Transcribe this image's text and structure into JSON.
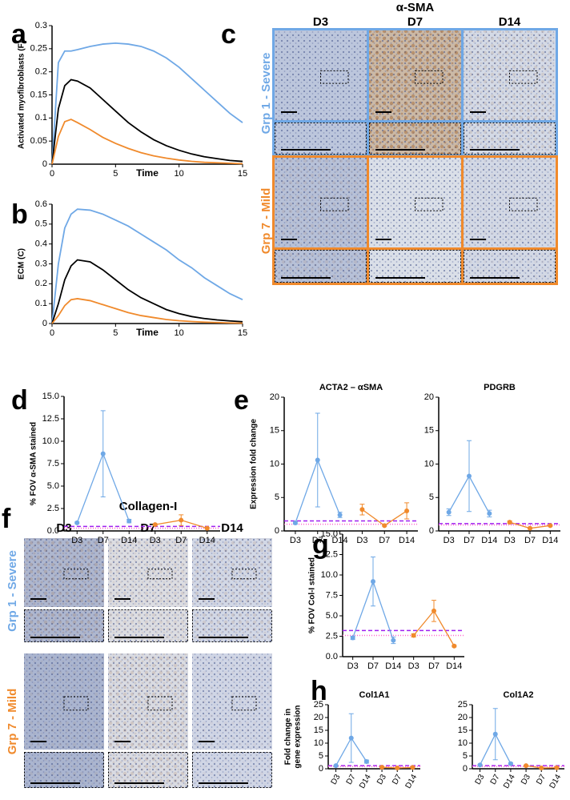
{
  "panel_labels": [
    "a",
    "b",
    "c",
    "d",
    "e",
    "f",
    "g",
    "h"
  ],
  "micrographs": [
    {
      "title": "α-SMA",
      "columns": [
        "D3",
        "D7",
        "D14"
      ],
      "rows": [
        "Grp 1 - Severe",
        "Grp 7 - Mild"
      ]
    },
    {
      "title": "Collagen-I",
      "columns": [
        "D3",
        "D7",
        "D14"
      ],
      "rows": [
        "Grp 1 - Severe",
        "Grp 7 - Mild"
      ]
    }
  ],
  "chart_data": [
    {
      "type": "line",
      "ylabel": "Activated  myofibroblasts (F)",
      "xlabel": "Time",
      "x": [
        0,
        0.5,
        1,
        1.5,
        2,
        3,
        4,
        5,
        6,
        7,
        8,
        9,
        10,
        11,
        12,
        13,
        14,
        15
      ],
      "xlim": [
        0,
        15
      ],
      "xticks": [
        0,
        5,
        10,
        15
      ],
      "ylim": [
        0,
        0.3
      ],
      "yticks": [
        0,
        0.05,
        0.1,
        0.15,
        0.2,
        0.25,
        0.3
      ],
      "series": [
        {
          "color": "#6fa8e6",
          "values": [
            0,
            0.22,
            0.245,
            0.245,
            0.248,
            0.255,
            0.26,
            0.262,
            0.26,
            0.255,
            0.245,
            0.23,
            0.21,
            0.185,
            0.16,
            0.135,
            0.11,
            0.09
          ]
        },
        {
          "color": "#000000",
          "values": [
            0,
            0.12,
            0.17,
            0.183,
            0.18,
            0.165,
            0.14,
            0.115,
            0.09,
            0.07,
            0.053,
            0.04,
            0.03,
            0.022,
            0.016,
            0.012,
            0.008,
            0.006
          ]
        },
        {
          "color": "#f08a2c",
          "values": [
            0,
            0.06,
            0.092,
            0.097,
            0.09,
            0.075,
            0.058,
            0.045,
            0.034,
            0.025,
            0.018,
            0.013,
            0.009,
            0.006,
            0.004,
            0.003,
            0.002,
            0.001
          ]
        }
      ]
    },
    {
      "type": "line",
      "ylabel": "ECM (C)",
      "xlabel": "Time",
      "x": [
        0,
        0.5,
        1,
        1.5,
        2,
        3,
        4,
        5,
        6,
        7,
        8,
        9,
        10,
        11,
        12,
        13,
        14,
        15
      ],
      "xlim": [
        0,
        15
      ],
      "xticks": [
        0,
        5,
        10,
        15
      ],
      "ylim": [
        0,
        0.6
      ],
      "yticks": [
        0,
        0.1,
        0.2,
        0.3,
        0.4,
        0.5,
        0.6
      ],
      "series": [
        {
          "color": "#6fa8e6",
          "values": [
            0,
            0.3,
            0.48,
            0.55,
            0.575,
            0.57,
            0.55,
            0.52,
            0.49,
            0.45,
            0.41,
            0.37,
            0.32,
            0.28,
            0.23,
            0.19,
            0.15,
            0.12
          ]
        },
        {
          "color": "#000000",
          "values": [
            0,
            0.1,
            0.22,
            0.29,
            0.32,
            0.31,
            0.27,
            0.22,
            0.17,
            0.13,
            0.1,
            0.07,
            0.05,
            0.035,
            0.025,
            0.018,
            0.013,
            0.009
          ]
        },
        {
          "color": "#f08a2c",
          "values": [
            0,
            0.04,
            0.09,
            0.12,
            0.125,
            0.115,
            0.095,
            0.075,
            0.055,
            0.04,
            0.03,
            0.02,
            0.014,
            0.01,
            0.007,
            0.005,
            0.003,
            0.002
          ]
        }
      ]
    },
    {
      "type": "line",
      "ylabel": "% FOV α-SMA stained",
      "categories": [
        "D3",
        "D7",
        "D14",
        "D3",
        "D7",
        "D14"
      ],
      "ylim": [
        0,
        15
      ],
      "yticks": [
        {
          "value": 0,
          "label": "0.0"
        },
        2.5,
        {
          "value": 5,
          "label": "5.0"
        },
        7.5,
        {
          "value": 10,
          "label": "10.0"
        },
        12.5,
        {
          "value": 15,
          "label": "15.0"
        }
      ],
      "reference_lines": [
        {
          "value": 0.5,
          "color": "#a020f0",
          "dash": "5,3"
        },
        {
          "value": 0.3,
          "color": "#ff66cc",
          "dash": "1,2"
        }
      ],
      "series": [
        {
          "color": "#6fa8e6",
          "values": [
            0.9,
            8.6,
            1.1,
            null,
            null,
            null
          ],
          "errors": [
            0.1,
            4.8,
            0.2,
            null,
            null,
            null
          ]
        },
        {
          "color": "#f08a2c",
          "values": [
            null,
            null,
            null,
            0.7,
            1.2,
            0.3
          ],
          "errors": [
            null,
            null,
            null,
            0.1,
            0.6,
            0.1
          ]
        }
      ]
    },
    {
      "type": "line",
      "title": "ACTA2 – αSMA",
      "ylabel": "Expression fold change",
      "categories": [
        "D3",
        "D7",
        "D14",
        "D3",
        "D7",
        "D14"
      ],
      "ylim": [
        0,
        20
      ],
      "yticks": [
        0,
        5,
        10,
        15,
        20
      ],
      "reference_lines": [
        {
          "value": 1.5,
          "color": "#a020f0",
          "dash": "5,3"
        },
        {
          "value": 1,
          "color": "#ff66cc",
          "dash": "1,2"
        }
      ],
      "series": [
        {
          "color": "#6fa8e6",
          "values": [
            1.2,
            10.6,
            2.4,
            null,
            null,
            null
          ],
          "errors": [
            0.2,
            7,
            0.4,
            null,
            null,
            null
          ]
        },
        {
          "color": "#f08a2c",
          "values": [
            null,
            null,
            null,
            3.2,
            0.8,
            3
          ],
          "errors": [
            null,
            null,
            null,
            0.8,
            0.1,
            1.2
          ]
        }
      ]
    },
    {
      "type": "line",
      "title": "PDGRB",
      "categories": [
        "D3",
        "D7",
        "D14",
        "D3",
        "D7",
        "D14"
      ],
      "ylim": [
        0,
        20
      ],
      "yticks": [
        0,
        5,
        10,
        15,
        20
      ],
      "reference_lines": [
        {
          "value": 1.1,
          "color": "#a020f0",
          "dash": "5,3"
        },
        {
          "value": 0.9,
          "color": "#ff66cc",
          "dash": "1,2"
        }
      ],
      "series": [
        {
          "color": "#6fa8e6",
          "values": [
            2.8,
            8.2,
            2.6,
            null,
            null,
            null
          ],
          "errors": [
            0.5,
            5.3,
            0.5,
            null,
            null,
            null
          ]
        },
        {
          "color": "#f08a2c",
          "values": [
            null,
            null,
            null,
            1.3,
            0.4,
            0.8
          ],
          "errors": [
            null,
            null,
            null,
            0.2,
            0.1,
            0.1
          ]
        }
      ]
    },
    {
      "type": "line",
      "ylabel": "% FOV Col-I stained",
      "categories": [
        "D3",
        "D7",
        "D14",
        "D3",
        "D7",
        "D14"
      ],
      "ylim": [
        0,
        15
      ],
      "yticks": [
        {
          "value": 0,
          "label": "0.0"
        },
        2.5,
        {
          "value": 5,
          "label": "5.0"
        },
        7.5,
        {
          "value": 10,
          "label": "10.0"
        },
        12.5,
        {
          "value": 15,
          "label": "15.0"
        }
      ],
      "reference_lines": [
        {
          "value": 3.2,
          "color": "#a020f0",
          "dash": "5,3"
        },
        {
          "value": 2.6,
          "color": "#ff66cc",
          "dash": "1,2"
        }
      ],
      "series": [
        {
          "color": "#6fa8e6",
          "values": [
            2.3,
            9.2,
            2,
            null,
            null,
            null
          ],
          "errors": [
            0.2,
            3,
            0.4,
            null,
            null,
            null
          ]
        },
        {
          "color": "#f08a2c",
          "values": [
            null,
            null,
            null,
            2.6,
            5.6,
            1.3
          ],
          "errors": [
            null,
            null,
            null,
            0.2,
            1.3,
            0.1
          ]
        }
      ]
    },
    {
      "type": "line",
      "title": "Col1A1",
      "ylabel": [
        "Fold change in",
        "gene expression"
      ],
      "categories": [
        "D3",
        "D7",
        "D14",
        "D3",
        "D7",
        "D14"
      ],
      "ylim": [
        0,
        25
      ],
      "yticks": [
        0,
        5,
        10,
        15,
        20,
        25
      ],
      "reference_lines": [
        {
          "value": 1.2,
          "color": "#a020f0",
          "dash": "5,3"
        },
        {
          "value": 0.9,
          "color": "#ff66cc",
          "dash": "1,2"
        }
      ],
      "series": [
        {
          "color": "#6fa8e6",
          "values": [
            1.2,
            12,
            2.8,
            null,
            null,
            null
          ],
          "errors": [
            0.2,
            9.5,
            0.6,
            null,
            null,
            null
          ]
        },
        {
          "color": "#f08a2c",
          "values": [
            null,
            null,
            null,
            0.6,
            0.3,
            0.5
          ],
          "errors": [
            null,
            null,
            null,
            0.1,
            0.1,
            0.1
          ]
        }
      ]
    },
    {
      "type": "line",
      "title": "Col1A2",
      "categories": [
        "D3",
        "D7",
        "D14",
        "D3",
        "D7",
        "D14"
      ],
      "ylim": [
        0,
        25
      ],
      "yticks": [
        0,
        5,
        10,
        15,
        20,
        25
      ],
      "reference_lines": [
        {
          "value": 1.2,
          "color": "#a020f0",
          "dash": "5,3"
        },
        {
          "value": 0.9,
          "color": "#ff66cc",
          "dash": "1,2"
        }
      ],
      "series": [
        {
          "color": "#6fa8e6",
          "values": [
            1.5,
            13.5,
            2,
            null,
            null,
            null
          ],
          "errors": [
            0.2,
            10,
            0.4,
            null,
            null,
            null
          ]
        },
        {
          "color": "#f08a2c",
          "values": [
            null,
            null,
            null,
            1.2,
            0.3,
            0.4
          ],
          "errors": [
            null,
            null,
            null,
            0.2,
            0.1,
            0.1
          ]
        }
      ]
    }
  ]
}
